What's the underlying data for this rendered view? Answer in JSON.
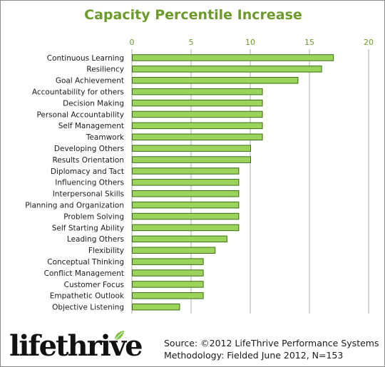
{
  "chart_data": {
    "type": "bar",
    "orientation": "horizontal",
    "title": "Capacity Percentile Increase",
    "categories": [
      "Continuous Learning",
      "Resiliency",
      "Goal Achievement",
      "Accountability for others",
      "Decision Making",
      "Personal Accountability",
      "Self Management",
      "Teamwork",
      "Developing Others",
      "Results Orientation",
      "Diplomacy and Tact",
      "Influencing Others",
      "Interpersonal Skills",
      "Planning and Organization",
      "Problem Solving",
      "Self Starting Ability",
      "Leading Others",
      "Flexibility",
      "Conceptual Thinking",
      "Conflict Management",
      "Customer Focus",
      "Empathetic Outlook",
      "Objective Listening"
    ],
    "values": [
      17,
      16,
      14,
      11,
      11,
      11,
      11,
      11,
      10,
      10,
      9,
      9,
      9,
      9,
      9,
      9,
      8,
      7,
      6,
      6,
      6,
      6,
      4
    ],
    "xlim": [
      0,
      20
    ],
    "xticks": [
      "0",
      "5",
      "10",
      "15",
      "20"
    ],
    "x_axis_position": "top",
    "grid": true,
    "legend": "none",
    "colors": {
      "bar_fill": "#9bd45a",
      "bar_stroke": "#3d6b16",
      "title": "#6c9a2b",
      "tick_label": "#6c9a2b",
      "grid": "#a8a8a8"
    }
  },
  "logo": {
    "text": "lifethrive",
    "icon": "leaf-icon"
  },
  "source": {
    "line1": "Source: ©2012 LifeThrive Performance Systems",
    "line2": "Methodology: Fielded June 2012, N=153"
  }
}
